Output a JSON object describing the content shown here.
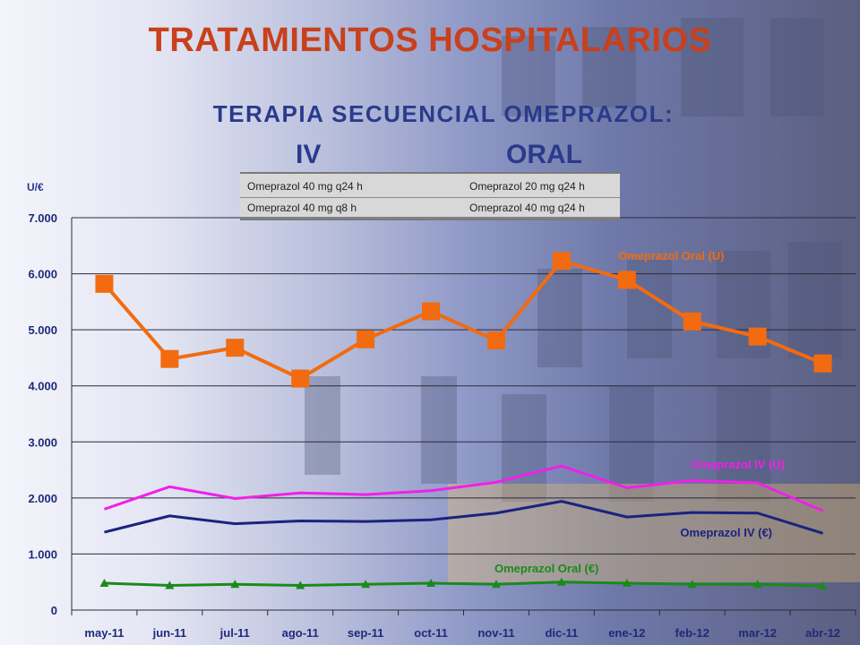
{
  "header": {
    "title": "TRATAMIENTOS HOSPITALARIOS",
    "subtitle": "TERAPIA SECUENCIAL OMEPRAZOL:",
    "route_iv": "IV",
    "route_oral": "ORAL"
  },
  "regimen_table": {
    "rows": [
      [
        "Omeprazol 40 mg q24 h",
        "Omeprazol 20 mg q24 h"
      ],
      [
        "Omeprazol 40 mg q8 h",
        "Omeprazol 40 mg q24 h"
      ]
    ]
  },
  "colors": {
    "title": "#c8401c",
    "subtitle": "#2a3a8c",
    "oral_units": "#f26b10",
    "iv_units": "#f020e8",
    "iv_euros": "#1a237e",
    "oral_euros": "#1a8a1a"
  },
  "chart_data": {
    "type": "line",
    "ylabel": "U/€",
    "ylim": [
      0,
      7000
    ],
    "ytick_labels": [
      "0",
      "1.000",
      "2.000",
      "3.000",
      "4.000",
      "5.000",
      "6.000",
      "7.000"
    ],
    "yticks": [
      0,
      1000,
      2000,
      3000,
      4000,
      5000,
      6000,
      7000
    ],
    "grid": true,
    "categories": [
      "may-11",
      "jun-11",
      "jul-11",
      "ago-11",
      "sep-11",
      "oct-11",
      "nov-11",
      "dic-11",
      "ene-12",
      "feb-12",
      "mar-12",
      "abr-12"
    ],
    "series": [
      {
        "name": "Omeprazol Oral (U)",
        "color": "#f26b10",
        "marker": "square",
        "values": [
          5820,
          4480,
          4680,
          4130,
          4830,
          5330,
          4810,
          6230,
          5890,
          5150,
          4880,
          4400
        ]
      },
      {
        "name": "Omeprazol IV (U)",
        "color": "#f020e8",
        "marker": "none",
        "values": [
          1800,
          2200,
          1990,
          2090,
          2060,
          2130,
          2280,
          2570,
          2180,
          2310,
          2270,
          1770
        ]
      },
      {
        "name": "Omeprazol IV (€)",
        "color": "#1a237e",
        "marker": "none",
        "values": [
          1390,
          1680,
          1540,
          1590,
          1580,
          1610,
          1730,
          1940,
          1660,
          1740,
          1730,
          1370
        ]
      },
      {
        "name": "Omeprazol Oral (€)",
        "color": "#1a8a1a",
        "marker": "triangle",
        "values": [
          480,
          440,
          460,
          440,
          460,
          480,
          460,
          500,
          480,
          460,
          460,
          430
        ]
      }
    ]
  }
}
